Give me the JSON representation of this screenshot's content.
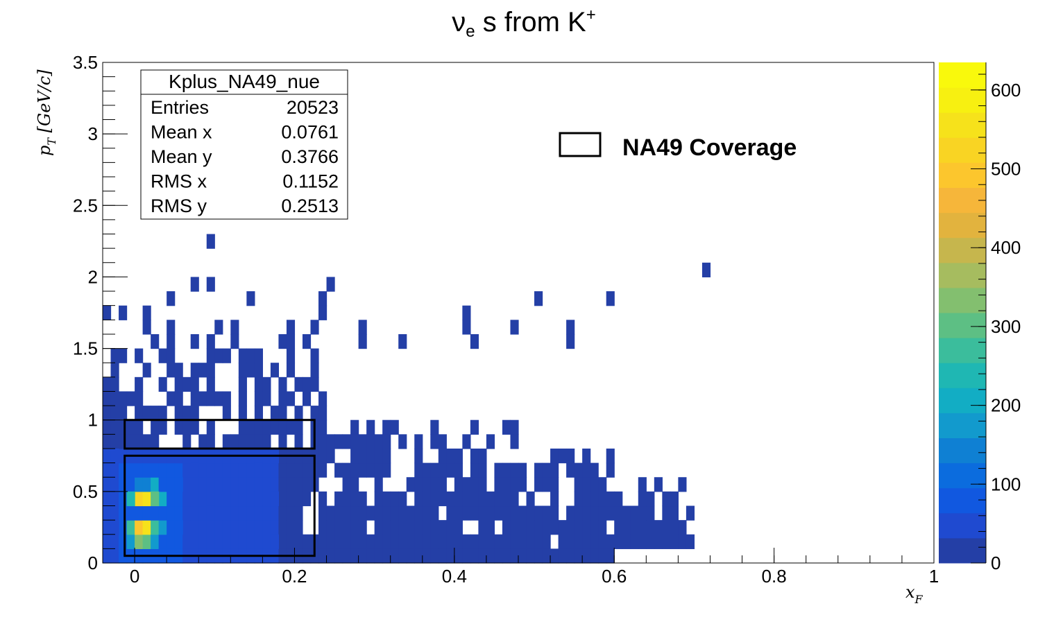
{
  "chart_data": {
    "type": "heatmap",
    "title_main": "ν",
    "title_sub": "e",
    "title_mid": " s from K",
    "title_sup": "+",
    "xlabel_main": "x",
    "xlabel_sub": "F",
    "ylabel_main": "p",
    "ylabel_sub": "T",
    "ylabel_unit": " [GeV/c]",
    "xlim": [
      -0.04,
      1.0
    ],
    "ylim": [
      0,
      3.5
    ],
    "x_ticks": [
      {
        "v": 0,
        "label": "0"
      },
      {
        "v": 0.2,
        "label": "0.2"
      },
      {
        "v": 0.4,
        "label": "0.4"
      },
      {
        "v": 0.6,
        "label": "0.6"
      },
      {
        "v": 0.8,
        "label": "0.8"
      },
      {
        "v": 1.0,
        "label": "1"
      }
    ],
    "y_ticks": [
      {
        "v": 0,
        "label": "0"
      },
      {
        "v": 0.5,
        "label": "0.5"
      },
      {
        "v": 1.0,
        "label": "1"
      },
      {
        "v": 1.5,
        "label": "1.5"
      },
      {
        "v": 2.0,
        "label": "2"
      },
      {
        "v": 2.5,
        "label": "2.5"
      },
      {
        "v": 3.0,
        "label": "3"
      },
      {
        "v": 3.5,
        "label": "3.5"
      }
    ],
    "zlim": [
      0,
      635
    ],
    "z_ticks": [
      {
        "v": 0,
        "label": "0"
      },
      {
        "v": 100,
        "label": "100"
      },
      {
        "v": 200,
        "label": "200"
      },
      {
        "v": 300,
        "label": "300"
      },
      {
        "v": 400,
        "label": "400"
      },
      {
        "v": 500,
        "label": "500"
      },
      {
        "v": 600,
        "label": "600"
      }
    ],
    "bin_width_x": 0.01,
    "bin_width_y": 0.1,
    "stats": {
      "name": "Kplus_NA49_nue",
      "rows": [
        {
          "label": "Entries",
          "value": "20523"
        },
        {
          "label": "Mean x",
          "value": "0.0761"
        },
        {
          "label": "Mean y",
          "value": "0.3766"
        },
        {
          "label": "RMS x",
          "value": "0.1152"
        },
        {
          "label": "RMS y",
          "value": "0.2513"
        }
      ]
    },
    "legend": {
      "label": "NA49 Coverage",
      "position": "top-right"
    },
    "coverage_boxes": [
      {
        "x0": -0.0125,
        "x1": 0.225,
        "y0": 0.05,
        "y1": 0.75
      },
      {
        "x0": -0.0125,
        "x1": 0.225,
        "y0": 0.8,
        "y1": 1.0
      }
    ],
    "hot_cells": [
      {
        "x": 0.0,
        "y": 0.4,
        "z": 520
      },
      {
        "x": 0.01,
        "y": 0.4,
        "z": 560
      },
      {
        "x": 0.0,
        "y": 0.3,
        "z": 590
      },
      {
        "x": 0.01,
        "y": 0.3,
        "z": 620
      },
      {
        "x": 0.0,
        "y": 0.2,
        "z": 500
      },
      {
        "x": 0.01,
        "y": 0.2,
        "z": 560
      },
      {
        "x": -0.01,
        "y": 0.3,
        "z": 300
      },
      {
        "x": -0.01,
        "y": 0.2,
        "z": 280
      },
      {
        "x": 0.02,
        "y": 0.3,
        "z": 330
      },
      {
        "x": 0.02,
        "y": 0.4,
        "z": 300
      },
      {
        "x": 0.02,
        "y": 0.2,
        "z": 260
      },
      {
        "x": 0.03,
        "y": 0.3,
        "z": 230
      },
      {
        "x": 0.03,
        "y": 0.4,
        "z": 210
      },
      {
        "x": 0.0,
        "y": 0.5,
        "z": 250
      },
      {
        "x": 0.01,
        "y": 0.5,
        "z": 260
      },
      {
        "x": 0.0,
        "y": 0.1,
        "z": 330
      },
      {
        "x": 0.01,
        "y": 0.1,
        "z": 310
      },
      {
        "x": -0.01,
        "y": 0.1,
        "z": 170
      },
      {
        "x": -0.01,
        "y": 0.4,
        "z": 250
      },
      {
        "x": 0.02,
        "y": 0.5,
        "z": 200
      },
      {
        "x": 0.03,
        "y": 0.2,
        "z": 180
      },
      {
        "x": 0.0,
        "y": 0.6,
        "z": 150
      },
      {
        "x": 0.01,
        "y": 0.6,
        "z": 150
      },
      {
        "x": 0.02,
        "y": 0.1,
        "z": 190
      }
    ],
    "sparse_cells": [
      [
        0.085,
        2.25
      ],
      [
        0.07,
        1.95
      ],
      [
        0.09,
        1.95
      ],
      [
        0.035,
        1.85
      ],
      [
        0.135,
        1.85
      ],
      [
        0.245,
        1.95
      ],
      [
        0.235,
        1.85
      ],
      [
        -0.035,
        1.75
      ],
      [
        -0.025,
        1.75
      ],
      [
        0.005,
        1.75
      ],
      [
        0.225,
        1.75
      ],
      [
        0.415,
        1.75
      ],
      [
        0.5,
        1.85
      ],
      [
        0.59,
        1.85
      ],
      [
        0.705,
        2.05
      ],
      [
        0.005,
        1.65
      ],
      [
        0.045,
        1.65
      ],
      [
        0.105,
        1.65
      ],
      [
        0.115,
        1.65
      ],
      [
        0.185,
        1.65
      ],
      [
        0.215,
        1.65
      ],
      [
        0.275,
        1.65
      ],
      [
        0.405,
        1.65
      ],
      [
        0.465,
        1.65
      ],
      [
        0.535,
        1.65
      ],
      [
        0.015,
        1.55
      ],
      [
        0.035,
        1.55
      ],
      [
        0.065,
        1.55
      ],
      [
        0.085,
        1.55
      ],
      [
        0.115,
        1.55
      ],
      [
        0.175,
        1.55
      ],
      [
        0.185,
        1.55
      ],
      [
        0.205,
        1.55
      ],
      [
        0.275,
        1.55
      ],
      [
        0.325,
        1.55
      ],
      [
        0.425,
        1.55
      ],
      [
        0.535,
        1.55
      ]
    ],
    "regions": [
      {
        "x0": -0.04,
        "x1": 0.24,
        "y0": 0.0,
        "y1": 1.5,
        "z": 12
      },
      {
        "x0": 0.24,
        "x1": 0.48,
        "y0": 0.0,
        "y1": 1.0,
        "z": 8
      },
      {
        "x0": 0.48,
        "x1": 0.6,
        "y0": 0.0,
        "y1": 0.8,
        "z": 4
      },
      {
        "x0": 0.6,
        "x1": 0.7,
        "y0": 0.1,
        "y1": 0.6,
        "z": 2
      },
      {
        "x0": -0.04,
        "x1": 0.18,
        "y0": 0.0,
        "y1": 0.8,
        "z": 45
      },
      {
        "x0": -0.02,
        "x1": 0.06,
        "y0": 0.0,
        "y1": 0.7,
        "z": 80
      }
    ]
  },
  "colors": {
    "palette": [
      "#243fa6",
      "#1f4ad0",
      "#1158e0",
      "#0b6cde",
      "#0f80d3",
      "#129acd",
      "#12adc4",
      "#1fb7b3",
      "#3bbd9c",
      "#5dbf84",
      "#83bf6f",
      "#a6bc5f",
      "#c6b64d",
      "#e2b33e",
      "#f6b63a",
      "#fcc62d",
      "#f9d423",
      "#f6e21b",
      "#f7f011",
      "#f9f90c"
    ],
    "frame": "#000000"
  }
}
